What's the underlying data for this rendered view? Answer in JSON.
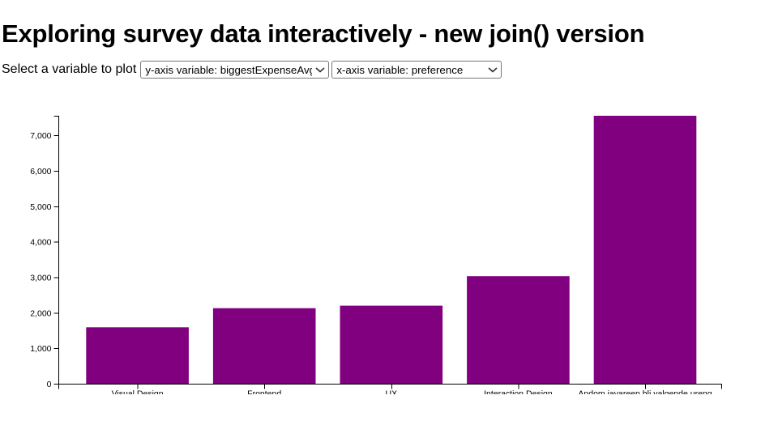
{
  "page": {
    "title": "Exploring survey data interactively - new join() version"
  },
  "controls": {
    "label": "Select a variable to plot",
    "y_select": {
      "selected": "y-axis variable: biggestExpenseAvg"
    },
    "x_select": {
      "selected": "x-axis variable: preference"
    }
  },
  "chart_data": {
    "type": "bar",
    "categories": [
      "Visual Design",
      "Frontend",
      "UX",
      "Interaction Design",
      "Andom javareen bli valgende ureng"
    ],
    "values": [
      1600,
      2140,
      2210,
      3040,
      7560
    ],
    "title": "",
    "xlabel": "",
    "ylabel": "",
    "ylim": [
      0,
      7560
    ],
    "yticks": [
      0,
      1000,
      2000,
      3000,
      4000,
      5000,
      6000,
      7000
    ],
    "bar_color": "#800080",
    "axis_color": "#000000",
    "grid": false,
    "legend": false
  }
}
